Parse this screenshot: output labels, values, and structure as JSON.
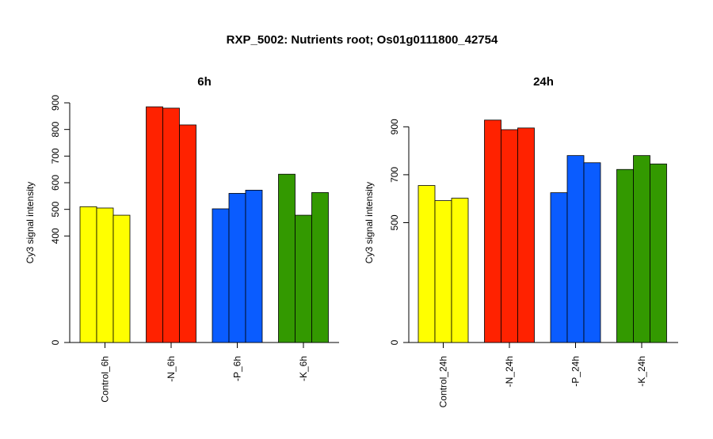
{
  "title": "RXP_5002: Nutrients root; Os01g0111800_42754",
  "chart_data": [
    {
      "type": "bar",
      "title": "6h",
      "ylabel": "Cy3 signal intensity",
      "ylim": [
        0,
        900
      ],
      "yticks": [
        0,
        400,
        500,
        600,
        700,
        800,
        900
      ],
      "categories": [
        "Control_6h",
        "-N_6h",
        "-P_6h",
        "-K_6h"
      ],
      "colors": [
        "#ffff00",
        "#ff2200",
        "#0a5cff",
        "#339900"
      ],
      "values": [
        [
          510,
          505,
          478
        ],
        [
          885,
          880,
          817
        ],
        [
          502,
          560,
          572
        ],
        [
          632,
          478,
          563
        ]
      ]
    },
    {
      "type": "bar",
      "title": "24h",
      "ylabel": "Cy3 signal intensity",
      "ylim": [
        0,
        1000
      ],
      "yticks": [
        0,
        500,
        700,
        900
      ],
      "categories": [
        "Control_24h",
        "-N_24h",
        "-P_24h",
        "-K_24h"
      ],
      "colors": [
        "#ffff00",
        "#ff2200",
        "#0a5cff",
        "#339900"
      ],
      "values": [
        [
          655,
          592,
          602
        ],
        [
          928,
          888,
          895
        ],
        [
          625,
          780,
          750
        ],
        [
          722,
          780,
          745
        ]
      ]
    }
  ]
}
